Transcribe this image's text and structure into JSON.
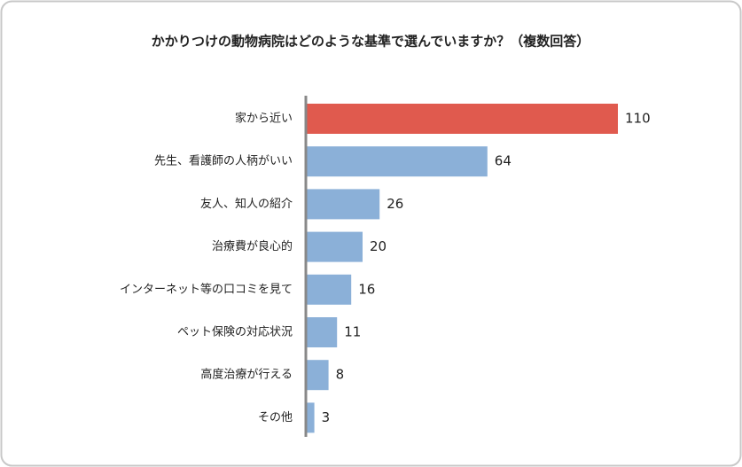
{
  "chart_data": {
    "type": "bar",
    "orientation": "horizontal",
    "title": "かかりつけの動物病院はどのような基準で選んでいますか？（複数回答）",
    "categories": [
      "家から近い",
      "先生、看護師の人柄がいい",
      "友人、知人の紹介",
      "治療費が良心的",
      "インターネット等の口コミを見て",
      "ペット保険の対応状況",
      "高度治療が行える",
      "その他"
    ],
    "values": [
      110,
      64,
      26,
      20,
      16,
      11,
      8,
      3
    ],
    "colors": [
      "#e05a4e",
      "#8bb0d8",
      "#8bb0d8",
      "#8bb0d8",
      "#8bb0d8",
      "#8bb0d8",
      "#8bb0d8",
      "#8bb0d8"
    ]
  }
}
